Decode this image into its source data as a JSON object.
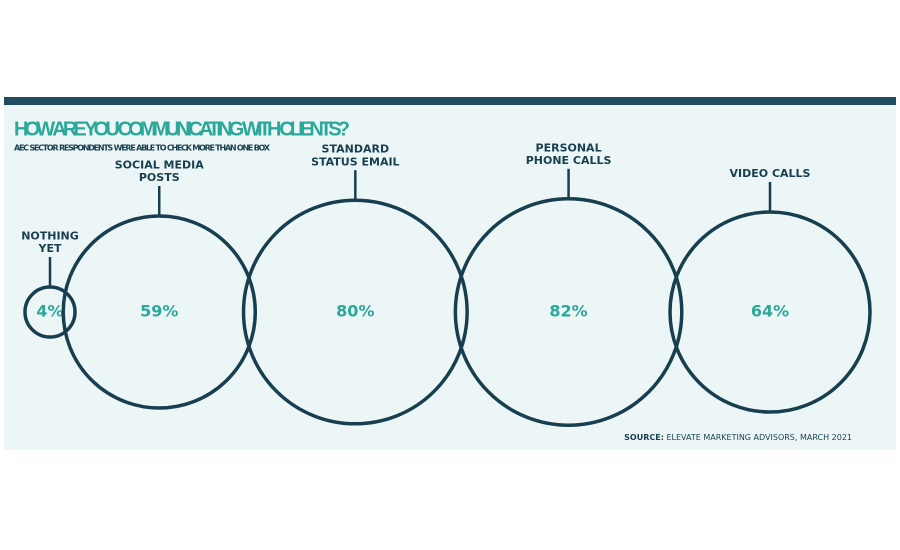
{
  "chart_data": {
    "type": "bubble",
    "title": "HOW ARE YOU COMMUNICATING WITH CLIENTS?",
    "subtitle": "AEC SECTOR RESPONDENTS WERE ABLE TO CHECK MORE THAN ONE BOX",
    "categories": [
      "NOTHING\nYET",
      "SOCIAL MEDIA\nPOSTS",
      "STANDARD\nSTATUS EMAIL",
      "PERSONAL\nPHONE CALLS",
      "VIDEO CALLS"
    ],
    "values": [
      4,
      59,
      80,
      82,
      64
    ],
    "value_labels": [
      "4%",
      "59%",
      "80%",
      "82%",
      "64%"
    ],
    "color": "#173f4f",
    "label_color": "#2aa89a",
    "source_label": "SOURCE:",
    "source_text": "ELEVATE MARKETING ADVISORS, MARCH 2021"
  }
}
